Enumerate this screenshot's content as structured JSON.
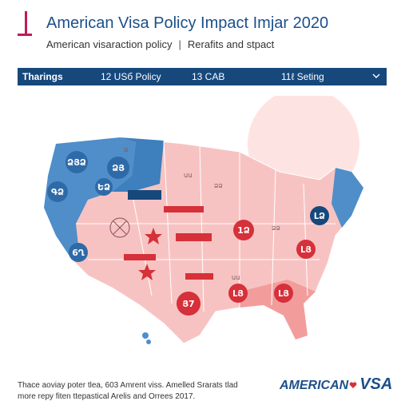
{
  "header": {
    "title": "American Visa Policy Impact Imjar 2020",
    "subtitle_left": "American visaraction policy",
    "subtitle_sep": "|",
    "subtitle_right": "Rerafits and stpact"
  },
  "toolbar": {
    "item1": "Tharings",
    "item2": "12 USб Policy",
    "item3": "13 CAB",
    "item4": "11ℓ Seting",
    "chevron_icon": "chevron-down-icon"
  },
  "map": {
    "markers": [
      {
        "label": "ՁՅՁ"
      },
      {
        "label": "ՁՅ"
      },
      {
        "label": "ԵՁ"
      },
      {
        "label": "ԳՁ"
      },
      {
        "label": "6Ղ"
      },
      {
        "label": "1Ձ"
      },
      {
        "label": "ԼՁ"
      },
      {
        "label": "ԼՅ"
      },
      {
        "label": "ԼՅ"
      },
      {
        "label": "Յ7"
      }
    ],
    "state_labels": [
      "Ձ",
      "ԱԱ",
      "ՁՁ",
      "ՁՁ",
      "ԱԱ"
    ],
    "colors": {
      "blue": "#4f8ec9",
      "red": "#d6303a",
      "pink": "#f7c3c2"
    }
  },
  "footer": {
    "note_line1": "Thace aoviay poter tlea, 603 Amrent viss. Amelled Srarats tlad",
    "note_line2": "more repy fiten ttepastical Arelis and Orrees 2017.",
    "brand_part1": "AMERICAN",
    "brand_part2": "VSA"
  }
}
